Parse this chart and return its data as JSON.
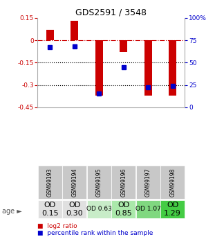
{
  "title": "GDS2591 / 3548",
  "samples": [
    "GSM99193",
    "GSM99194",
    "GSM99195",
    "GSM99196",
    "GSM99197",
    "GSM99198"
  ],
  "log2_ratio": [
    0.07,
    0.13,
    -0.37,
    -0.08,
    -0.37,
    -0.37
  ],
  "percentile_rank": [
    67,
    68,
    15,
    45,
    22,
    24
  ],
  "bar_color": "#cc0000",
  "dot_color": "#0000cc",
  "ylim_left": [
    -0.45,
    0.15
  ],
  "ylim_right": [
    0,
    100
  ],
  "yticks_left": [
    0.15,
    0.0,
    -0.15,
    -0.3,
    -0.45
  ],
  "yticks_left_labels": [
    "0.15",
    "0",
    "-0.15",
    "-0.3",
    "-0.45"
  ],
  "yticks_right": [
    100,
    75,
    50,
    25,
    0
  ],
  "yticks_right_labels": [
    "100%",
    "75",
    "50",
    "25",
    "0"
  ],
  "dotted_lines": [
    -0.15,
    -0.3
  ],
  "age_labels": [
    "OD\n0.15",
    "OD\n0.30",
    "OD 0.63",
    "OD\n0.85",
    "OD 1.07",
    "OD\n1.29"
  ],
  "age_fontsize": [
    8,
    8,
    6.5,
    8,
    6.5,
    8
  ],
  "age_bg_colors": [
    "#e0e0e0",
    "#e0e0e0",
    "#c8ecc8",
    "#aae8aa",
    "#80d880",
    "#44cc44"
  ],
  "sample_bg_color": "#c8c8c8",
  "background_color": "#ffffff",
  "legend_red_label": "log2 ratio",
  "legend_blue_label": "percentile rank within the sample",
  "bar_width": 0.3
}
